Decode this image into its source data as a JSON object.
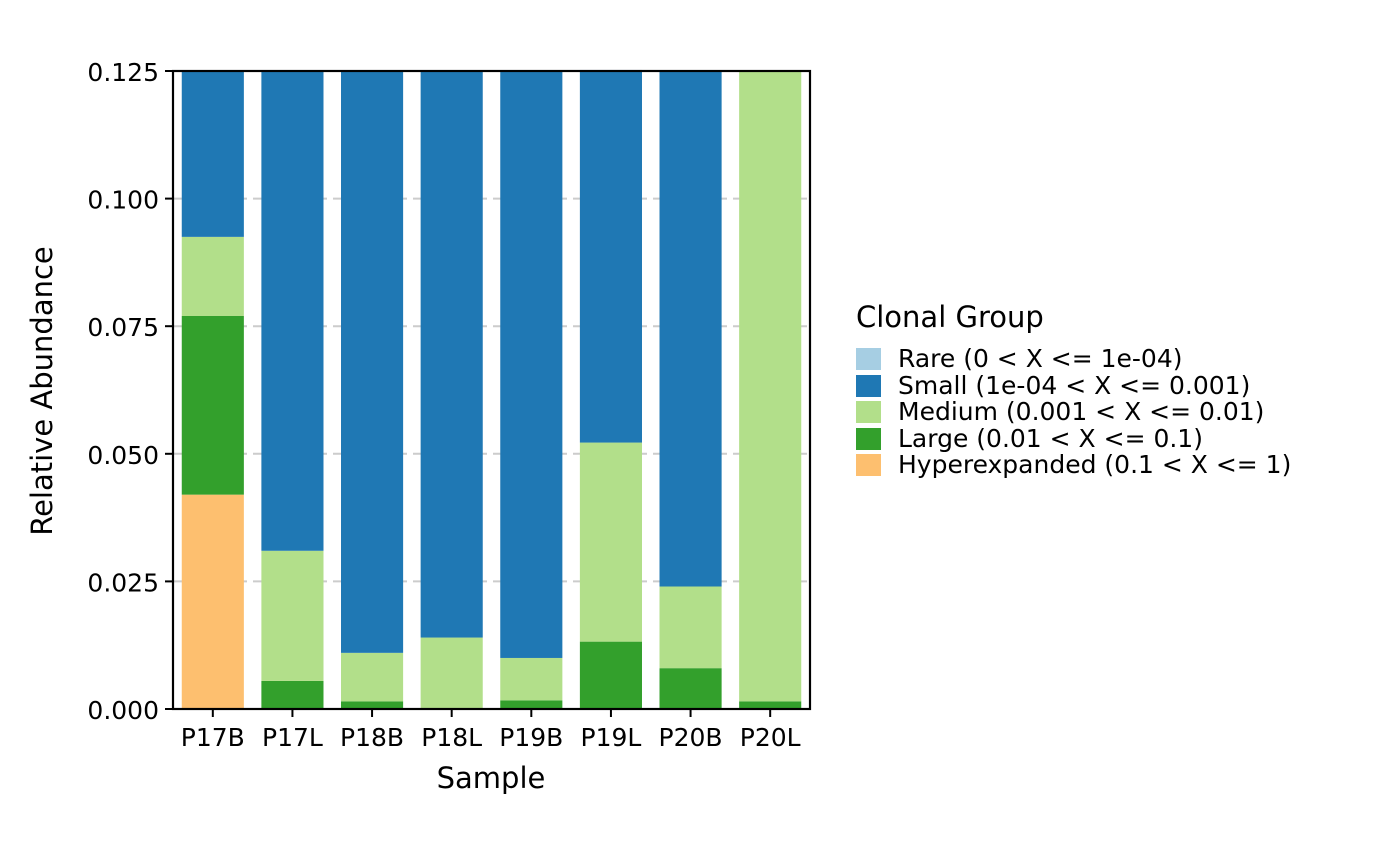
{
  "chart_data": {
    "type": "bar",
    "stacked": true,
    "categories": [
      "P17B",
      "P17L",
      "P18B",
      "P18L",
      "P19B",
      "P19L",
      "P20B",
      "P20L"
    ],
    "series": [
      {
        "name": "Rare (0 < X <= 1e-04)",
        "color": "#A6CEE3",
        "values": [
          0,
          0,
          0,
          0,
          0,
          0,
          0,
          0
        ]
      },
      {
        "name": "Small (1e-04 < X <= 0.001)",
        "color": "#1F78B4",
        "values": [
          0.0325,
          0.094,
          0.114,
          0.111,
          0.115,
          0.073,
          0.101,
          0
        ]
      },
      {
        "name": "Medium (0.001 < X <= 0.01)",
        "color": "#B2DF8A",
        "values": [
          0.0155,
          0.0255,
          0.0095,
          0.014,
          0.0083,
          0.039,
          0.016,
          0.1235
        ]
      },
      {
        "name": "Large (0.01 < X <= 0.1)",
        "color": "#33A02C",
        "values": [
          0.035,
          0.0055,
          0.0015,
          0,
          0.0017,
          0.0132,
          0.008,
          0.0015
        ]
      },
      {
        "name": "Hyperexpanded (0.1 < X <= 1)",
        "color": "#FDBF6F",
        "values": [
          0.042,
          0,
          0,
          0,
          0,
          0,
          0,
          0
        ]
      }
    ],
    "stack_order": [
      "Hyperexpanded (0.1 < X <= 1)",
      "Large (0.01 < X <= 0.1)",
      "Medium (0.001 < X <= 0.01)",
      "Small (1e-04 < X <= 0.001)",
      "Rare (0 < X <= 1e-04)"
    ],
    "ylim": [
      0,
      0.125
    ],
    "yticks": [
      "0.000",
      "0.025",
      "0.050",
      "0.075",
      "0.100",
      "0.125"
    ],
    "xlabel": "Sample",
    "ylabel": "Relative Abundance",
    "legend_title": "Clonal Group",
    "legend_position": "right",
    "grid": "horizontal dashed"
  }
}
